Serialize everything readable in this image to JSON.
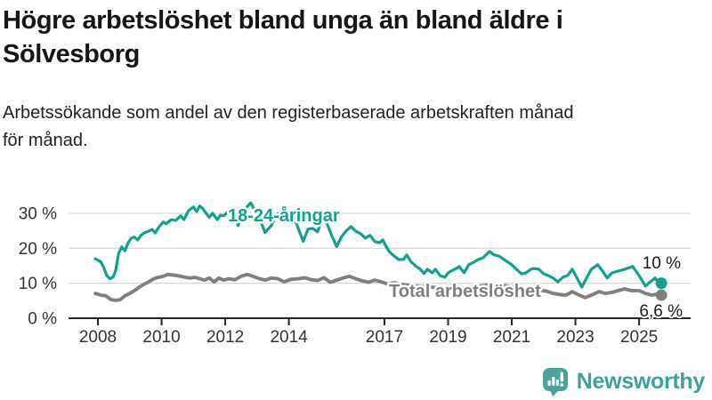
{
  "header": {
    "title_line1": "Högre arbetslöshet bland unga än bland äldre i",
    "title_line2": "Sölvesborg",
    "subtitle_line1": "Arbetssökande som andel av den registerbaserade arbetskraften månad",
    "subtitle_line2": "för månad."
  },
  "colors": {
    "youth_line": "#12a08f",
    "total_line": "#7f7f7f",
    "grid": "#d9d9d9",
    "axis": "#262626",
    "tick_text": "#333333",
    "value_label_text": "#1a1a1a",
    "logo_teal": "#49a29c",
    "logo_text_teal": "#3fa19a"
  },
  "chart_data": {
    "type": "line",
    "unit": "percent of registered labour force",
    "grid": "horizontal",
    "xlim": [
      2007.9,
      2026.0
    ],
    "ylim": [
      0,
      35
    ],
    "y_ticks": [
      {
        "label": "0 %",
        "value": 0
      },
      {
        "label": "10 %",
        "value": 10
      },
      {
        "label": "20 %",
        "value": 20
      },
      {
        "label": "30 %",
        "value": 30
      }
    ],
    "x_ticks": [
      {
        "label": "2008",
        "year": 2008
      },
      {
        "label": "2010",
        "year": 2010
      },
      {
        "label": "2012",
        "year": 2012
      },
      {
        "label": "2014",
        "year": 2014
      },
      {
        "label": "2017",
        "year": 2017
      },
      {
        "label": "2019",
        "year": 2019
      },
      {
        "label": "2021",
        "year": 2021
      },
      {
        "label": "2023",
        "year": 2023
      },
      {
        "label": "2025",
        "year": 2025
      }
    ],
    "series": [
      {
        "name": "18-24-åringar",
        "end_label": "10 %",
        "end_value": 10.0,
        "color": "#12a08f",
        "points": [
          [
            2007.92,
            17.0
          ],
          [
            2008.08,
            16.2
          ],
          [
            2008.17,
            14.8
          ],
          [
            2008.28,
            12.2
          ],
          [
            2008.38,
            11.3
          ],
          [
            2008.48,
            11.8
          ],
          [
            2008.56,
            13.7
          ],
          [
            2008.65,
            18.6
          ],
          [
            2008.75,
            20.4
          ],
          [
            2008.85,
            19.3
          ],
          [
            2008.95,
            21.6
          ],
          [
            2009.05,
            22.9
          ],
          [
            2009.15,
            23.2
          ],
          [
            2009.25,
            22.4
          ],
          [
            2009.35,
            23.7
          ],
          [
            2009.45,
            24.4
          ],
          [
            2009.6,
            24.9
          ],
          [
            2009.7,
            25.4
          ],
          [
            2009.8,
            24.4
          ],
          [
            2009.93,
            26.2
          ],
          [
            2010.05,
            27.5
          ],
          [
            2010.15,
            27.0
          ],
          [
            2010.3,
            28.2
          ],
          [
            2010.45,
            28.0
          ],
          [
            2010.6,
            29.3
          ],
          [
            2010.7,
            28.2
          ],
          [
            2010.85,
            30.8
          ],
          [
            2011.0,
            31.8
          ],
          [
            2011.1,
            30.5
          ],
          [
            2011.2,
            32.1
          ],
          [
            2011.3,
            31.3
          ],
          [
            2011.4,
            30.0
          ],
          [
            2011.5,
            28.8
          ],
          [
            2011.6,
            30.0
          ],
          [
            2011.75,
            28.2
          ],
          [
            2011.85,
            29.5
          ],
          [
            2011.95,
            29.3
          ],
          [
            2012.1,
            30.5
          ],
          [
            2012.2,
            29.3
          ],
          [
            2012.3,
            30.8
          ],
          [
            2012.4,
            26.5
          ],
          [
            2012.55,
            30.0
          ],
          [
            2012.7,
            32.0
          ],
          [
            2012.8,
            33.0
          ],
          [
            2012.95,
            30.5
          ],
          [
            2013.1,
            28.0
          ],
          [
            2013.25,
            24.5
          ],
          [
            2013.45,
            26.5
          ],
          [
            2013.6,
            29.5
          ],
          [
            2013.75,
            30.5
          ],
          [
            2013.9,
            29.5
          ],
          [
            2014.05,
            30.3
          ],
          [
            2014.2,
            28.0
          ],
          [
            2014.3,
            25.5
          ],
          [
            2014.45,
            22.0
          ],
          [
            2014.6,
            25.5
          ],
          [
            2014.75,
            25.7
          ],
          [
            2014.9,
            24.7
          ],
          [
            2015.05,
            28.5
          ],
          [
            2015.2,
            27.0
          ],
          [
            2015.35,
            23.5
          ],
          [
            2015.5,
            20.5
          ],
          [
            2015.65,
            23.3
          ],
          [
            2015.8,
            25.0
          ],
          [
            2015.95,
            26.2
          ],
          [
            2016.1,
            24.9
          ],
          [
            2016.25,
            24.2
          ],
          [
            2016.4,
            22.9
          ],
          [
            2016.55,
            23.7
          ],
          [
            2016.7,
            21.9
          ],
          [
            2016.85,
            21.6
          ],
          [
            2016.95,
            22.4
          ],
          [
            2017.05,
            20.6
          ],
          [
            2017.15,
            19.1
          ],
          [
            2017.3,
            17.8
          ],
          [
            2017.45,
            16.8
          ],
          [
            2017.6,
            16.8
          ],
          [
            2017.7,
            18.1
          ],
          [
            2017.85,
            16.0
          ],
          [
            2018.0,
            14.8
          ],
          [
            2018.1,
            14.2
          ],
          [
            2018.25,
            12.8
          ],
          [
            2018.35,
            14.0
          ],
          [
            2018.5,
            13.0
          ],
          [
            2018.6,
            14.0
          ],
          [
            2018.75,
            12.2
          ],
          [
            2018.9,
            11.7
          ],
          [
            2019.0,
            13.0
          ],
          [
            2019.1,
            13.5
          ],
          [
            2019.25,
            14.2
          ],
          [
            2019.35,
            14.8
          ],
          [
            2019.5,
            13.0
          ],
          [
            2019.65,
            15.3
          ],
          [
            2019.8,
            16.0
          ],
          [
            2019.95,
            16.8
          ],
          [
            2020.1,
            17.3
          ],
          [
            2020.3,
            19.1
          ],
          [
            2020.45,
            18.1
          ],
          [
            2020.6,
            17.8
          ],
          [
            2020.8,
            16.5
          ],
          [
            2021.0,
            15.3
          ],
          [
            2021.15,
            14.0
          ],
          [
            2021.3,
            12.7
          ],
          [
            2021.45,
            13.0
          ],
          [
            2021.6,
            14.0
          ],
          [
            2021.7,
            14.2
          ],
          [
            2021.85,
            14.0
          ],
          [
            2022.0,
            12.7
          ],
          [
            2022.15,
            12.2
          ],
          [
            2022.3,
            11.5
          ],
          [
            2022.45,
            10.4
          ],
          [
            2022.6,
            11.7
          ],
          [
            2022.75,
            12.2
          ],
          [
            2022.9,
            14.0
          ],
          [
            2023.05,
            11.5
          ],
          [
            2023.2,
            8.9
          ],
          [
            2023.35,
            11.5
          ],
          [
            2023.5,
            14.0
          ],
          [
            2023.7,
            15.3
          ],
          [
            2023.85,
            13.5
          ],
          [
            2024.0,
            11.5
          ],
          [
            2024.15,
            13.0
          ],
          [
            2024.35,
            13.5
          ],
          [
            2024.55,
            14.0
          ],
          [
            2024.8,
            14.8
          ],
          [
            2025.0,
            12.2
          ],
          [
            2025.2,
            9.2
          ],
          [
            2025.35,
            10.4
          ],
          [
            2025.5,
            11.5
          ],
          [
            2025.6,
            10.4
          ],
          [
            2025.7,
            10.0
          ]
        ]
      },
      {
        "name": "Total arbetslöshet",
        "end_label": "6,6 %",
        "end_value": 6.6,
        "color": "#7f7f7f",
        "points": [
          [
            2007.92,
            7.1
          ],
          [
            2008.1,
            6.6
          ],
          [
            2008.25,
            6.4
          ],
          [
            2008.4,
            5.4
          ],
          [
            2008.55,
            5.1
          ],
          [
            2008.7,
            5.3
          ],
          [
            2008.85,
            6.4
          ],
          [
            2009.0,
            7.1
          ],
          [
            2009.15,
            7.9
          ],
          [
            2009.3,
            8.9
          ],
          [
            2009.45,
            9.7
          ],
          [
            2009.6,
            10.4
          ],
          [
            2009.75,
            11.3
          ],
          [
            2009.9,
            11.7
          ],
          [
            2010.05,
            12.0
          ],
          [
            2010.2,
            12.5
          ],
          [
            2010.4,
            12.3
          ],
          [
            2010.6,
            12.0
          ],
          [
            2010.75,
            11.7
          ],
          [
            2010.9,
            11.5
          ],
          [
            2011.05,
            11.7
          ],
          [
            2011.2,
            11.3
          ],
          [
            2011.35,
            10.9
          ],
          [
            2011.5,
            11.5
          ],
          [
            2011.65,
            10.4
          ],
          [
            2011.8,
            11.5
          ],
          [
            2011.95,
            10.9
          ],
          [
            2012.1,
            11.3
          ],
          [
            2012.3,
            11.0
          ],
          [
            2012.5,
            12.0
          ],
          [
            2012.7,
            12.5
          ],
          [
            2012.9,
            11.9
          ],
          [
            2013.05,
            11.4
          ],
          [
            2013.25,
            10.9
          ],
          [
            2013.45,
            11.5
          ],
          [
            2013.65,
            11.3
          ],
          [
            2013.85,
            10.4
          ],
          [
            2014.05,
            11.1
          ],
          [
            2014.3,
            11.3
          ],
          [
            2014.5,
            11.6
          ],
          [
            2014.7,
            11.0
          ],
          [
            2014.9,
            10.8
          ],
          [
            2015.1,
            11.6
          ],
          [
            2015.3,
            10.3
          ],
          [
            2015.5,
            10.9
          ],
          [
            2015.7,
            11.5
          ],
          [
            2015.9,
            12.0
          ],
          [
            2016.1,
            11.3
          ],
          [
            2016.3,
            10.7
          ],
          [
            2016.5,
            10.3
          ],
          [
            2016.7,
            10.9
          ],
          [
            2016.9,
            10.4
          ],
          [
            2017.1,
            9.8
          ],
          [
            2017.3,
            10.2
          ],
          [
            2017.5,
            9.7
          ],
          [
            2017.75,
            9.4
          ],
          [
            2018.0,
            9.2
          ],
          [
            2018.3,
            9.0
          ],
          [
            2018.6,
            8.8
          ],
          [
            2018.9,
            8.6
          ],
          [
            2019.2,
            8.8
          ],
          [
            2019.5,
            8.6
          ],
          [
            2019.8,
            8.9
          ],
          [
            2020.1,
            9.3
          ],
          [
            2020.4,
            9.8
          ],
          [
            2020.7,
            9.4
          ],
          [
            2021.0,
            9.0
          ],
          [
            2021.3,
            8.6
          ],
          [
            2021.6,
            8.3
          ],
          [
            2021.9,
            8.0
          ],
          [
            2022.1,
            7.7
          ],
          [
            2022.3,
            7.1
          ],
          [
            2022.5,
            6.8
          ],
          [
            2022.7,
            6.6
          ],
          [
            2022.9,
            7.6
          ],
          [
            2023.1,
            6.7
          ],
          [
            2023.3,
            5.9
          ],
          [
            2023.5,
            6.6
          ],
          [
            2023.75,
            7.6
          ],
          [
            2023.95,
            7.1
          ],
          [
            2024.15,
            7.4
          ],
          [
            2024.35,
            7.9
          ],
          [
            2024.55,
            8.4
          ],
          [
            2024.75,
            7.9
          ],
          [
            2025.0,
            7.9
          ],
          [
            2025.2,
            7.1
          ],
          [
            2025.4,
            6.6
          ],
          [
            2025.55,
            6.9
          ],
          [
            2025.7,
            6.6
          ]
        ]
      }
    ]
  },
  "branding": {
    "logo_text": "Newsworthy",
    "logo_icon": "bar-chart-speech-bubble-icon"
  }
}
